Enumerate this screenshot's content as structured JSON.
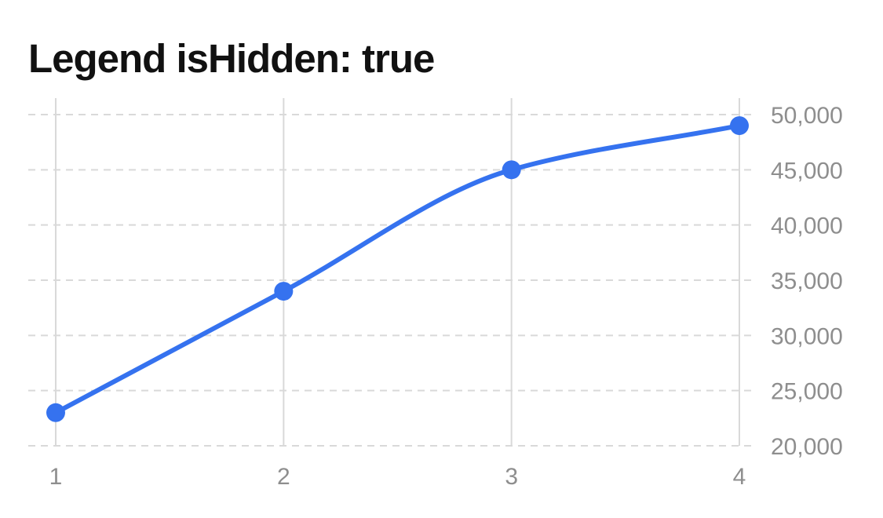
{
  "chart_data": {
    "type": "line",
    "title": "Legend isHidden: true",
    "xlabel": "",
    "ylabel": "",
    "x": [
      1,
      2,
      3,
      4
    ],
    "x_tick_labels": [
      "1",
      "2",
      "3",
      "4"
    ],
    "series": [
      {
        "values": [
          23000,
          34000,
          45000,
          49000
        ],
        "color": "#3572ef"
      }
    ],
    "ylim": [
      20000,
      50000
    ],
    "y_ticks": [
      20000,
      25000,
      30000,
      35000,
      40000,
      45000,
      50000
    ],
    "y_tick_labels": [
      "20,000",
      "25,000",
      "30,000",
      "35,000",
      "40,000",
      "45,000",
      "50,000"
    ],
    "y_axis_side": "right",
    "curve": "smooth",
    "legend": "hidden",
    "grid": {
      "horizontal": "dashed",
      "vertical": "solid"
    },
    "colors": {
      "grid": "#d9d9d9",
      "tick_text": "#8e8e8e",
      "title": "#111111"
    }
  }
}
